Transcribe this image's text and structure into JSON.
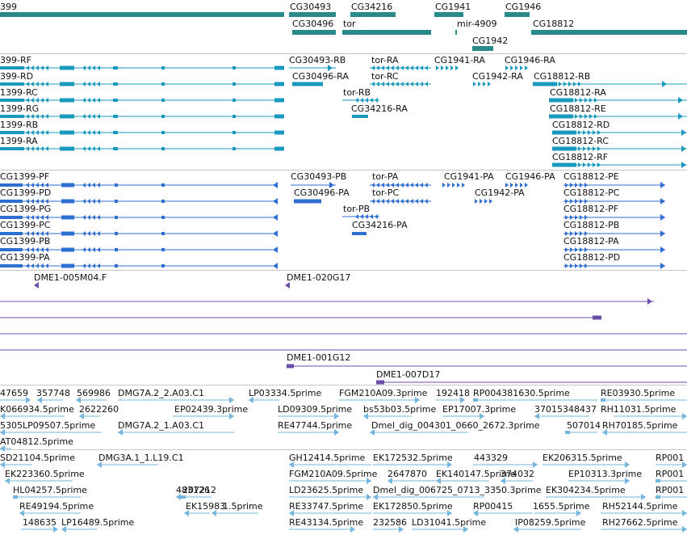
{
  "colors": {
    "gene": "#2a8a8a",
    "rna": "#1a99bf",
    "protein": "#2e6fd3",
    "clone": "#6b4ea8",
    "est": "#74b6de",
    "separator": "#c8c8c8"
  },
  "tracks": {
    "genes": {
      "labels": [
        "399",
        "CG30493",
        "CG34216",
        "CG1941",
        "CG1946",
        "CG30496",
        "tor",
        "mir-4909",
        "CG18812",
        "CG1942"
      ]
    },
    "transcripts": {
      "labels": [
        "399-RF",
        "399-RD",
        "1399-RC",
        "1399-RG",
        "1399-RB",
        "1399-RA",
        "CG30493-RB",
        "CG30496-RA",
        "tor-RB",
        "CG34216-RA",
        "tor-RA",
        "tor-RC",
        "CG1941-RA",
        "CG1946-RA",
        "CG1942-RA",
        "CG18812-RB",
        "CG18812-RA",
        "CG18812-RE",
        "CG18812-RD",
        "CG18812-RC",
        "CG18812-RF"
      ]
    },
    "proteins": {
      "labels": [
        "CG1399-PF",
        "CG1399-PD",
        "CG1399-PG",
        "CG1399-PC",
        "CG1399-PB",
        "CG1399-PA",
        "CG30493-PB",
        "CG30496-PA",
        "tor-PB",
        "CG34216-PA",
        "tor-PA",
        "tor-PC",
        "CG1941-PA",
        "CG1946-PA",
        "CG1942-PA",
        "CG18812-PE",
        "CG18812-PC",
        "CG18812-PF",
        "CG18812-PB",
        "CG18812-PA",
        "CG18812-PD"
      ]
    },
    "clones": {
      "labels": [
        "DME1-005M04.F",
        "DME1-020G17",
        "DME1-001G12",
        "DME1-007D17"
      ]
    },
    "ests_a": {
      "labels": [
        "47659",
        "357748",
        "569986",
        "DMG7A.2_2.A03.C1",
        "LP03334.5prime",
        "FGM210A09.3prime",
        "192418",
        "RP004381630.5prime",
        "RE03930.5prime",
        "K066934.5prime",
        "2622260",
        "EP02439.3prime",
        "LD09309.5prime",
        "bs53b03.5prime",
        "EP17007.3prime",
        "37015348437",
        "RH11031.5prime",
        "5305LP09507.5prime",
        "DMG7A.2_1.A03.C1",
        "RE47744.5prime",
        "Dmel_dig_004301_0660_2672.3prime",
        "507014",
        "RH70185.5prime",
        "AT04812.5prime"
      ]
    },
    "ests_b": {
      "labels": [
        "SD21104.5prime",
        "DMG3A.1_1.L19.C1",
        "GH12414.5prime",
        "EK172532.5prime",
        "443329",
        "EK206315.5prime",
        "RP001",
        "EK223360.5prime",
        "FGM210A09.5prime",
        "2647870",
        "EK140147.5prime",
        "374032",
        "EP10313.3prime",
        "RP001",
        "HL04257.5prime",
        "483126",
        "207212",
        "LD23625.5prime",
        "Dmel_dig_006725_0713_3350.3prime",
        "EK304234.5prime",
        "RP001",
        "RE49194.5prime",
        "EK15983",
        "1.5prime",
        "RE33747.5prime",
        "EK172850.5prime",
        "RP00415",
        "1655.5prime",
        "RH52144.5prime",
        "148635",
        "LP16489.5prime",
        "RE43134.5prime",
        "232586",
        "LD31041.5prime",
        "IP08259.5prime",
        "RH27662.5prime"
      ]
    }
  }
}
